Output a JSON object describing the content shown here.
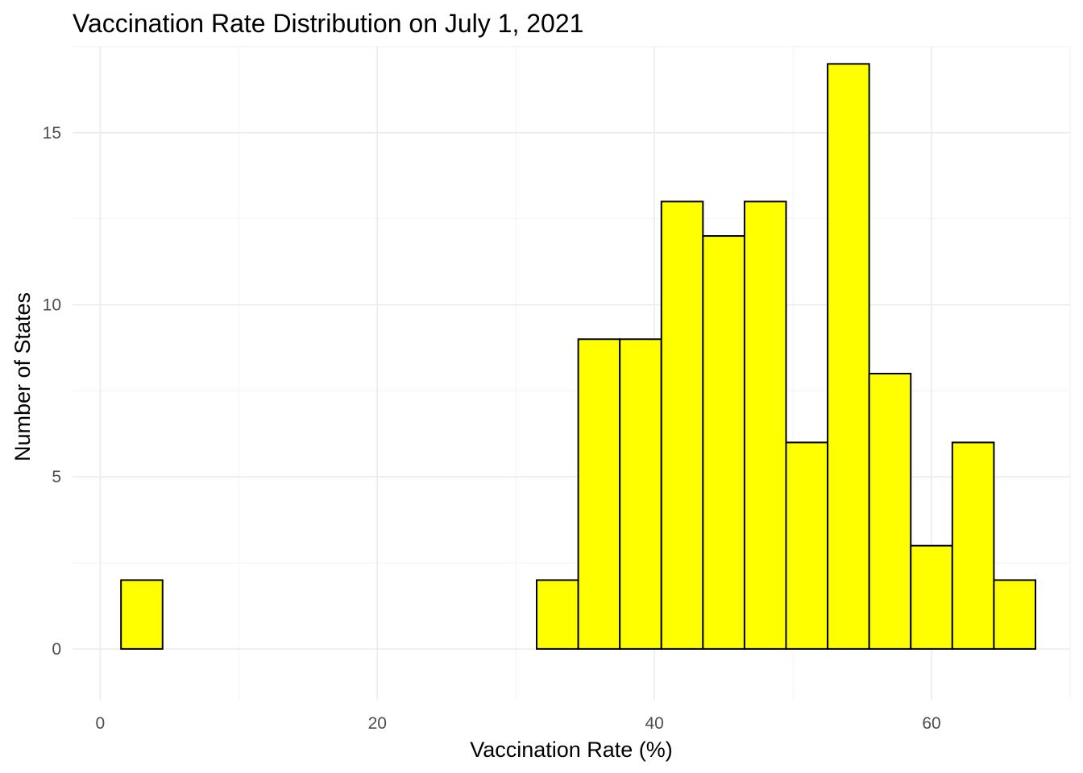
{
  "chart_data": {
    "type": "bar",
    "title": "Vaccination Rate Distribution on July 1, 2021",
    "xlabel": "Vaccination Rate (%)",
    "ylabel": "Number of States",
    "xlim": [
      -2,
      70
    ],
    "ylim": [
      -1.5,
      17.5
    ],
    "x_ticks": [
      0,
      20,
      40,
      60
    ],
    "x_tick_labels": [
      "0",
      "20",
      "40",
      "60"
    ],
    "x_minor_ticks": [
      10,
      30,
      50,
      70
    ],
    "y_ticks": [
      0,
      5,
      10,
      15
    ],
    "y_tick_labels": [
      "0",
      "5",
      "10",
      "15"
    ],
    "y_minor_ticks": [
      2.5,
      7.5,
      12.5,
      17.5
    ],
    "grid": true,
    "bar_color": "#FFFF00",
    "bar_outline_color": "#000000",
    "bins": [
      {
        "x0": 1.5,
        "x1": 4.5,
        "count": 2
      },
      {
        "x0": 4.5,
        "x1": 7.5,
        "count": 0
      },
      {
        "x0": 7.5,
        "x1": 10.5,
        "count": 0
      },
      {
        "x0": 10.5,
        "x1": 13.5,
        "count": 0
      },
      {
        "x0": 13.5,
        "x1": 16.5,
        "count": 0
      },
      {
        "x0": 16.5,
        "x1": 19.5,
        "count": 0
      },
      {
        "x0": 19.5,
        "x1": 22.5,
        "count": 0
      },
      {
        "x0": 22.5,
        "x1": 25.5,
        "count": 0
      },
      {
        "x0": 25.5,
        "x1": 28.5,
        "count": 0
      },
      {
        "x0": 28.5,
        "x1": 31.5,
        "count": 0
      },
      {
        "x0": 31.5,
        "x1": 34.5,
        "count": 2
      },
      {
        "x0": 34.5,
        "x1": 37.5,
        "count": 9
      },
      {
        "x0": 37.5,
        "x1": 40.5,
        "count": 9
      },
      {
        "x0": 40.5,
        "x1": 43.5,
        "count": 13
      },
      {
        "x0": 43.5,
        "x1": 46.5,
        "count": 12
      },
      {
        "x0": 46.5,
        "x1": 49.5,
        "count": 13
      },
      {
        "x0": 49.5,
        "x1": 52.5,
        "count": 6
      },
      {
        "x0": 52.5,
        "x1": 55.5,
        "count": 17
      },
      {
        "x0": 55.5,
        "x1": 58.5,
        "count": 8
      },
      {
        "x0": 58.5,
        "x1": 61.5,
        "count": 3
      },
      {
        "x0": 61.5,
        "x1": 64.5,
        "count": 6
      },
      {
        "x0": 64.5,
        "x1": 67.5,
        "count": 2
      }
    ]
  }
}
